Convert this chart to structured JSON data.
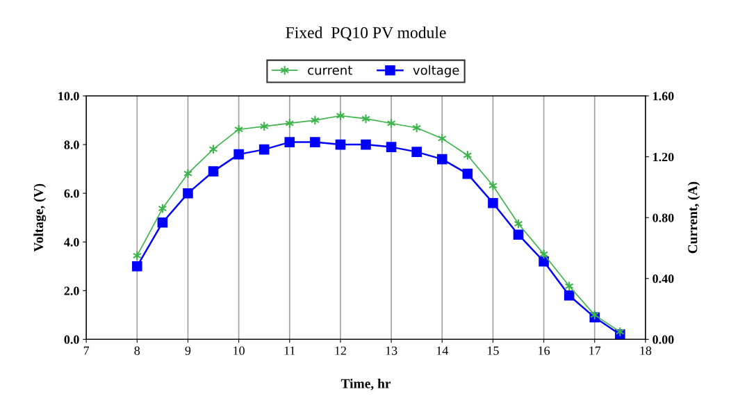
{
  "chart_data": {
    "type": "line",
    "title": "Fixed  PQ10 PV module",
    "xlabel": "Time, hr",
    "ylabel": "Voltage, (V)",
    "y2label": "Current, (A)",
    "x": [
      8,
      8.5,
      9,
      9.5,
      10,
      10.5,
      11,
      11.5,
      12,
      12.5,
      13,
      13.5,
      14,
      14.5,
      15,
      15.5,
      16,
      16.5,
      17,
      17.5
    ],
    "series": [
      {
        "name": "current",
        "color": "#3cb44b",
        "marker": "cross",
        "axis": "y2",
        "values": [
          0.55,
          0.86,
          1.09,
          1.25,
          1.38,
          1.4,
          1.42,
          1.44,
          1.47,
          1.45,
          1.42,
          1.39,
          1.32,
          1.21,
          1.01,
          0.76,
          0.56,
          0.35,
          0.16,
          0.05
        ]
      },
      {
        "name": "voltage",
        "color": "#0000ff",
        "marker": "square",
        "values": [
          3.0,
          4.8,
          6.0,
          6.9,
          7.6,
          7.8,
          8.1,
          8.1,
          8.0,
          8.0,
          7.9,
          7.7,
          7.4,
          6.8,
          5.6,
          4.3,
          3.2,
          1.8,
          0.9,
          0.2
        ]
      }
    ],
    "xlim": [
      7,
      18
    ],
    "xticks": [
      7,
      8,
      9,
      10,
      11,
      12,
      13,
      14,
      15,
      16,
      17,
      18
    ],
    "ylim": [
      0,
      10
    ],
    "yticks": [
      {
        "value": 0,
        "label": "0.0"
      },
      {
        "value": 2,
        "label": "2.0"
      },
      {
        "value": 4,
        "label": "4.0"
      },
      {
        "value": 6,
        "label": "6.0"
      },
      {
        "value": 8,
        "label": "8.0"
      },
      {
        "value": 10,
        "label": "10.0"
      }
    ],
    "y2lim": [
      0,
      1.6
    ],
    "y2ticks": [
      {
        "value": 0,
        "label": "0.00"
      },
      {
        "value": 0.4,
        "label": "0.40"
      },
      {
        "value": 0.8,
        "label": "0.80"
      },
      {
        "value": 1.2,
        "label": "1.20"
      },
      {
        "value": 1.6,
        "label": "1.60"
      }
    ],
    "grid": "x",
    "legend": "top",
    "line_style": "solid"
  }
}
